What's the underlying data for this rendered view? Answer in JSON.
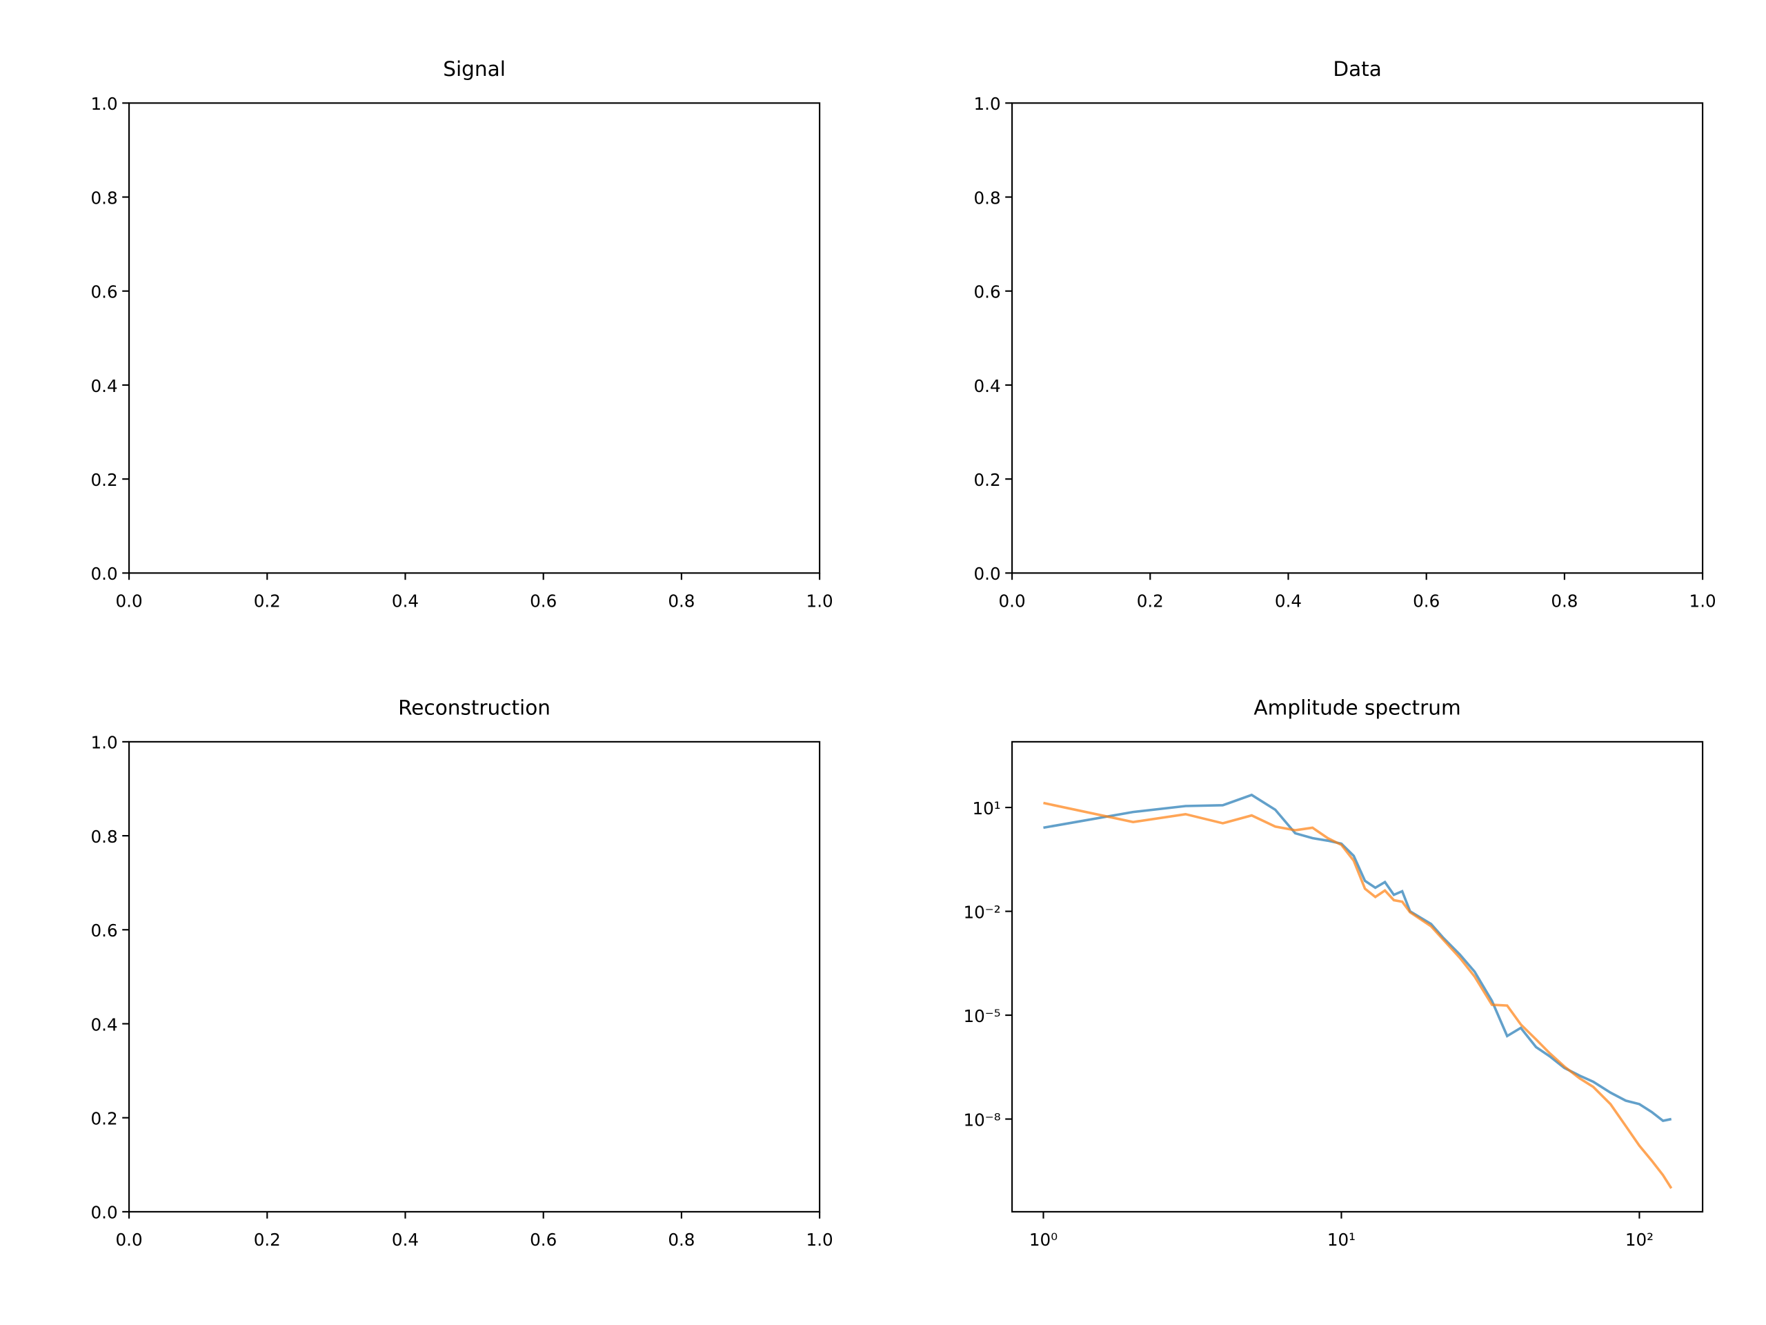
{
  "chart_data": [
    {
      "type": "line",
      "title": "Signal",
      "xlim": [
        0,
        1
      ],
      "ylim": [
        0,
        1
      ],
      "xticks": [
        {
          "value": 0,
          "label": "0.0"
        },
        0.2,
        0.4,
        0.6,
        0.8,
        {
          "value": 1,
          "label": "1.0"
        }
      ],
      "yticks": [
        {
          "value": 0,
          "label": "0.0"
        },
        0.2,
        0.4,
        0.6,
        0.8,
        {
          "value": 1,
          "label": "1.0"
        }
      ],
      "series": []
    },
    {
      "type": "line",
      "title": "Data",
      "xlim": [
        0,
        1
      ],
      "ylim": [
        0,
        1
      ],
      "xticks": [
        {
          "value": 0,
          "label": "0.0"
        },
        0.2,
        0.4,
        0.6,
        0.8,
        {
          "value": 1,
          "label": "1.0"
        }
      ],
      "yticks": [
        {
          "value": 0,
          "label": "0.0"
        },
        0.2,
        0.4,
        0.6,
        0.8,
        {
          "value": 1,
          "label": "1.0"
        }
      ],
      "series": []
    },
    {
      "type": "line",
      "title": "Reconstruction",
      "xlim": [
        0,
        1
      ],
      "ylim": [
        0,
        1
      ],
      "xticks": [
        {
          "value": 0,
          "label": "0.0"
        },
        0.2,
        0.4,
        0.6,
        0.8,
        {
          "value": 1,
          "label": "1.0"
        }
      ],
      "yticks": [
        {
          "value": 0,
          "label": "0.0"
        },
        0.2,
        0.4,
        0.6,
        0.8,
        {
          "value": 1,
          "label": "1.0"
        }
      ],
      "series": []
    },
    {
      "type": "line",
      "title": "Amplitude spectrum",
      "xscale": "log",
      "yscale": "log",
      "xlim": [
        0.785,
        163
      ],
      "ylim": [
        2.1e-11,
        790
      ],
      "xticks": [
        {
          "value": 1,
          "label": "10⁰"
        },
        {
          "value": 10,
          "label": "10¹"
        },
        {
          "value": 100,
          "label": "10²"
        }
      ],
      "yticks": [
        {
          "value": 10,
          "label": "10¹"
        },
        {
          "value": 0.01,
          "label": "10⁻²"
        },
        {
          "value": 1e-05,
          "label": "10⁻⁵"
        },
        {
          "value": 1e-08,
          "label": "10⁻⁸"
        }
      ],
      "x": [
        1,
        2,
        3,
        4,
        5,
        6,
        7,
        8,
        9,
        10,
        11,
        12,
        13,
        14,
        15,
        16,
        17,
        20,
        22,
        25,
        28,
        32,
        36,
        40,
        45,
        50,
        56,
        63,
        70,
        80,
        90,
        100,
        110,
        120,
        128
      ],
      "series": [
        {
          "color": "#1f77b4",
          "values": [
            2.6,
            7.4,
            11,
            11.6,
            23,
            8.6,
            1.8,
            1.3,
            1.1,
            0.9,
            0.4,
            0.076,
            0.048,
            0.07,
            0.03,
            0.038,
            0.01,
            0.0043,
            0.0017,
            0.00056,
            0.00018,
            2.6e-05,
            2.5e-06,
            4.3e-06,
            1.2e-06,
            6.5e-07,
            3e-07,
            1.8e-07,
            1.2e-07,
            5.8e-08,
            3.4e-08,
            2.7e-08,
            1.6e-08,
            8.9e-09,
            1e-08
          ]
        },
        {
          "color": "#ff7f0e",
          "values": [
            13.5,
            3.8,
            6.4,
            3.5,
            5.9,
            2.8,
            2.2,
            2.6,
            1.3,
            0.83,
            0.29,
            0.045,
            0.026,
            0.04,
            0.021,
            0.019,
            0.0094,
            0.0037,
            0.0015,
            0.00045,
            0.00013,
            2e-05,
            1.9e-05,
            5.4e-06,
            2e-06,
            8e-07,
            3.3e-07,
            1.5e-07,
            8.5e-08,
            2.7e-08,
            6.3e-09,
            1.7e-09,
            6.3e-10,
            2.4e-10,
            1e-10
          ]
        }
      ]
    }
  ]
}
